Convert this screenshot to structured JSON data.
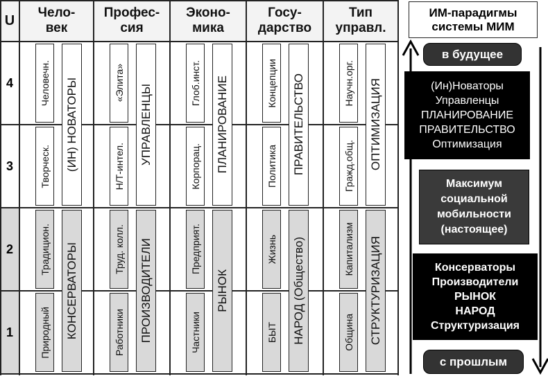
{
  "header": {
    "u_label": "U",
    "rows": [
      "4",
      "3",
      "2",
      "1"
    ]
  },
  "columns": [
    {
      "header": [
        "Чело-",
        "век"
      ],
      "small": [
        "Человечн.",
        "Творческ.",
        "Традицион.",
        "Природный"
      ],
      "big": [
        "(ИН) НОВАТОРЫ",
        "КОНСЕРВАТОРЫ"
      ]
    },
    {
      "header": [
        "Профес-",
        "сия"
      ],
      "small": [
        "«Элита»",
        "Н/Т-интел.",
        "Труд. колл.",
        "Работники"
      ],
      "big": [
        "УПРАВЛЕНЦЫ",
        "ПРОИЗВОДИТЕЛИ"
      ]
    },
    {
      "header": [
        "Эконо-",
        "мика"
      ],
      "small": [
        "Глоб.инст.",
        "Корпорац.",
        "Предприят.",
        "Частники"
      ],
      "big": [
        "ПЛАНИРОВАНИЕ",
        "РЫНОК"
      ]
    },
    {
      "header": [
        "Госу-",
        "дарство"
      ],
      "small": [
        "Концепции",
        "Политика",
        "Жизнь",
        "БЫТ"
      ],
      "big": [
        "ПРАВИТЕЛЬСТВО",
        "НАРОД (Общество)"
      ]
    },
    {
      "header": [
        "Тип",
        "управл."
      ],
      "small": [
        "Научн.орг.",
        "Гражд.общ.",
        "Капитализм",
        "Община"
      ],
      "big": [
        "ОПТИМИЗАЦИЯ",
        "СТРУКТУРИЗАЦИЯ"
      ]
    }
  ],
  "right_panel": {
    "title": [
      "ИМ-парадигмы",
      "системы МИМ"
    ],
    "future": "в будущее",
    "upper_box": [
      "(Ин)Новаторы",
      "Управленцы",
      "ПЛАНИРОВАНИЕ",
      "ПРАВИТЕЛЬСТВО",
      "Оптимизация"
    ],
    "middle_box": [
      "Максимум",
      "социальной",
      "мобильности",
      "(настоящее)"
    ],
    "lower_box": [
      "Консерваторы",
      "Производители",
      "РЫНОК",
      "НАРОД",
      "Структуризация"
    ],
    "past": "с прошлым",
    "arrow_up": "arrow-up-icon",
    "arrow_down": "arrow-down-icon"
  },
  "colors": {
    "lower_fill": "#d9d9d9",
    "dark_box": "#000000",
    "mid_box": "#3a3a3a",
    "pill": "#333333"
  }
}
